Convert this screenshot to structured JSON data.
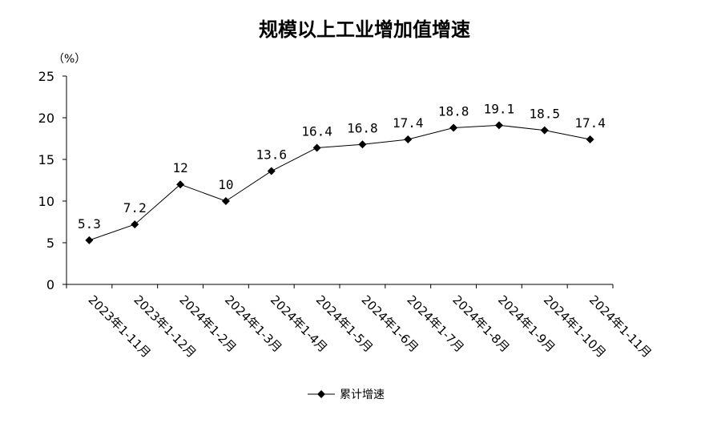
{
  "chart_data": {
    "type": "line",
    "title": "规模以上工业增加值增速",
    "y_unit": "（%）",
    "ylim": [
      0,
      25
    ],
    "yticks": [
      "0",
      "5",
      "10",
      "15",
      "20",
      "25"
    ],
    "grid": false,
    "legend_position": "bottom",
    "categories": [
      "2023年1-11月",
      "2023年1-12月",
      "2024年1-2月",
      "2024年1-3月",
      "2024年1-4月",
      "2024年1-5月",
      "2024年1-6月",
      "2024年1-7月",
      "2024年1-8月",
      "2024年1-9月",
      "2024年1-10月",
      "2024年1-11月"
    ],
    "series": [
      {
        "name": "累计增速",
        "values": [
          5.3,
          7.2,
          12,
          10,
          13.6,
          16.4,
          16.8,
          17.4,
          18.8,
          19.1,
          18.5,
          17.4
        ],
        "labels": [
          "5.3",
          "7.2",
          "12",
          "10",
          "13.6",
          "16.4",
          "16.8",
          "17.4",
          "18.8",
          "19.1",
          "18.5",
          "17.4"
        ],
        "color": "#000000",
        "marker": "diamond"
      }
    ]
  }
}
